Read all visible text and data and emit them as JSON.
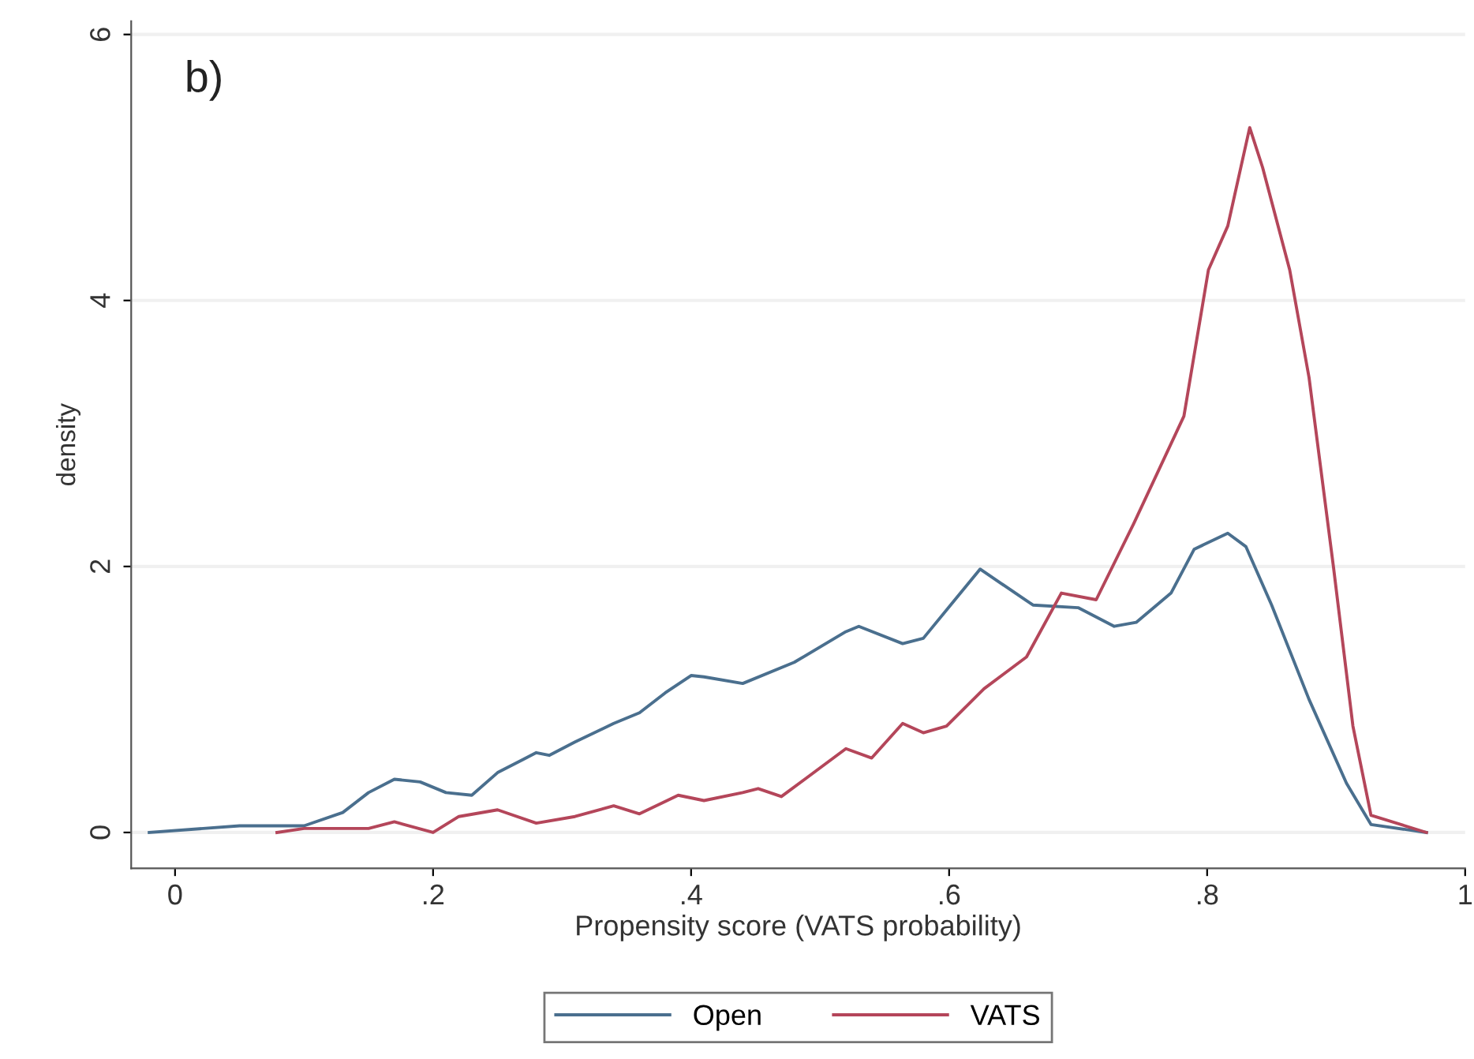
{
  "chart_data": {
    "type": "line",
    "xlabel": "Propensity score (VATS probability)",
    "ylabel": "density",
    "annotations": [
      "b)"
    ],
    "xlim": [
      -0.034,
      1.0
    ],
    "ylim": [
      -0.27,
      6.1
    ],
    "xticks": [
      0,
      {
        "value": 0.2,
        "label": ".2"
      },
      {
        "value": 0.4,
        "label": ".4"
      },
      {
        "value": 0.6,
        "label": ".6"
      },
      {
        "value": 0.8,
        "label": ".8"
      },
      1
    ],
    "yticks": [
      0,
      2,
      4,
      6
    ],
    "grid": "y",
    "legend": "bottom",
    "line_style": "solid",
    "marker": "none",
    "series": [
      {
        "name": "Open",
        "color": "#4a6f8e",
        "x": [
          -0.02,
          0.05,
          0.1,
          0.13,
          0.15,
          0.17,
          0.19,
          0.21,
          0.23,
          0.25,
          0.27,
          0.28,
          0.29,
          0.31,
          0.34,
          0.36,
          0.38,
          0.4,
          0.41,
          0.44,
          0.48,
          0.52,
          0.53,
          0.564,
          0.58,
          0.624,
          0.665,
          0.7,
          0.728,
          0.745,
          0.772,
          0.79,
          0.816,
          0.83,
          0.85,
          0.879,
          0.908,
          0.927,
          0.97
        ],
        "values": [
          0,
          0.05,
          0.05,
          0.15,
          0.3,
          0.4,
          0.38,
          0.3,
          0.28,
          0.45,
          0.55,
          0.6,
          0.58,
          0.68,
          0.82,
          0.9,
          1.05,
          1.18,
          1.17,
          1.12,
          1.28,
          1.51,
          1.55,
          1.42,
          1.46,
          1.98,
          1.71,
          1.69,
          1.55,
          1.58,
          1.8,
          2.13,
          2.25,
          2.15,
          1.71,
          1.0,
          0.37,
          0.06,
          0
        ]
      },
      {
        "name": "VATS",
        "color": "#b4465a",
        "x": [
          0.079,
          0.1,
          0.15,
          0.17,
          0.2,
          0.22,
          0.25,
          0.28,
          0.31,
          0.34,
          0.36,
          0.39,
          0.41,
          0.44,
          0.452,
          0.47,
          0.52,
          0.54,
          0.564,
          0.58,
          0.598,
          0.627,
          0.66,
          0.687,
          0.714,
          0.743,
          0.782,
          0.801,
          0.816,
          0.833,
          0.843,
          0.864,
          0.879,
          0.898,
          0.913,
          0.927,
          0.97
        ],
        "values": [
          0,
          0.03,
          0.03,
          0.08,
          0,
          0.12,
          0.17,
          0.07,
          0.12,
          0.2,
          0.14,
          0.28,
          0.24,
          0.3,
          0.33,
          0.27,
          0.63,
          0.56,
          0.82,
          0.75,
          0.8,
          1.08,
          1.32,
          1.8,
          1.75,
          2.32,
          3.13,
          4.23,
          4.56,
          5.3,
          5.0,
          4.23,
          3.42,
          1.99,
          0.8,
          0.13,
          0
        ]
      }
    ]
  }
}
